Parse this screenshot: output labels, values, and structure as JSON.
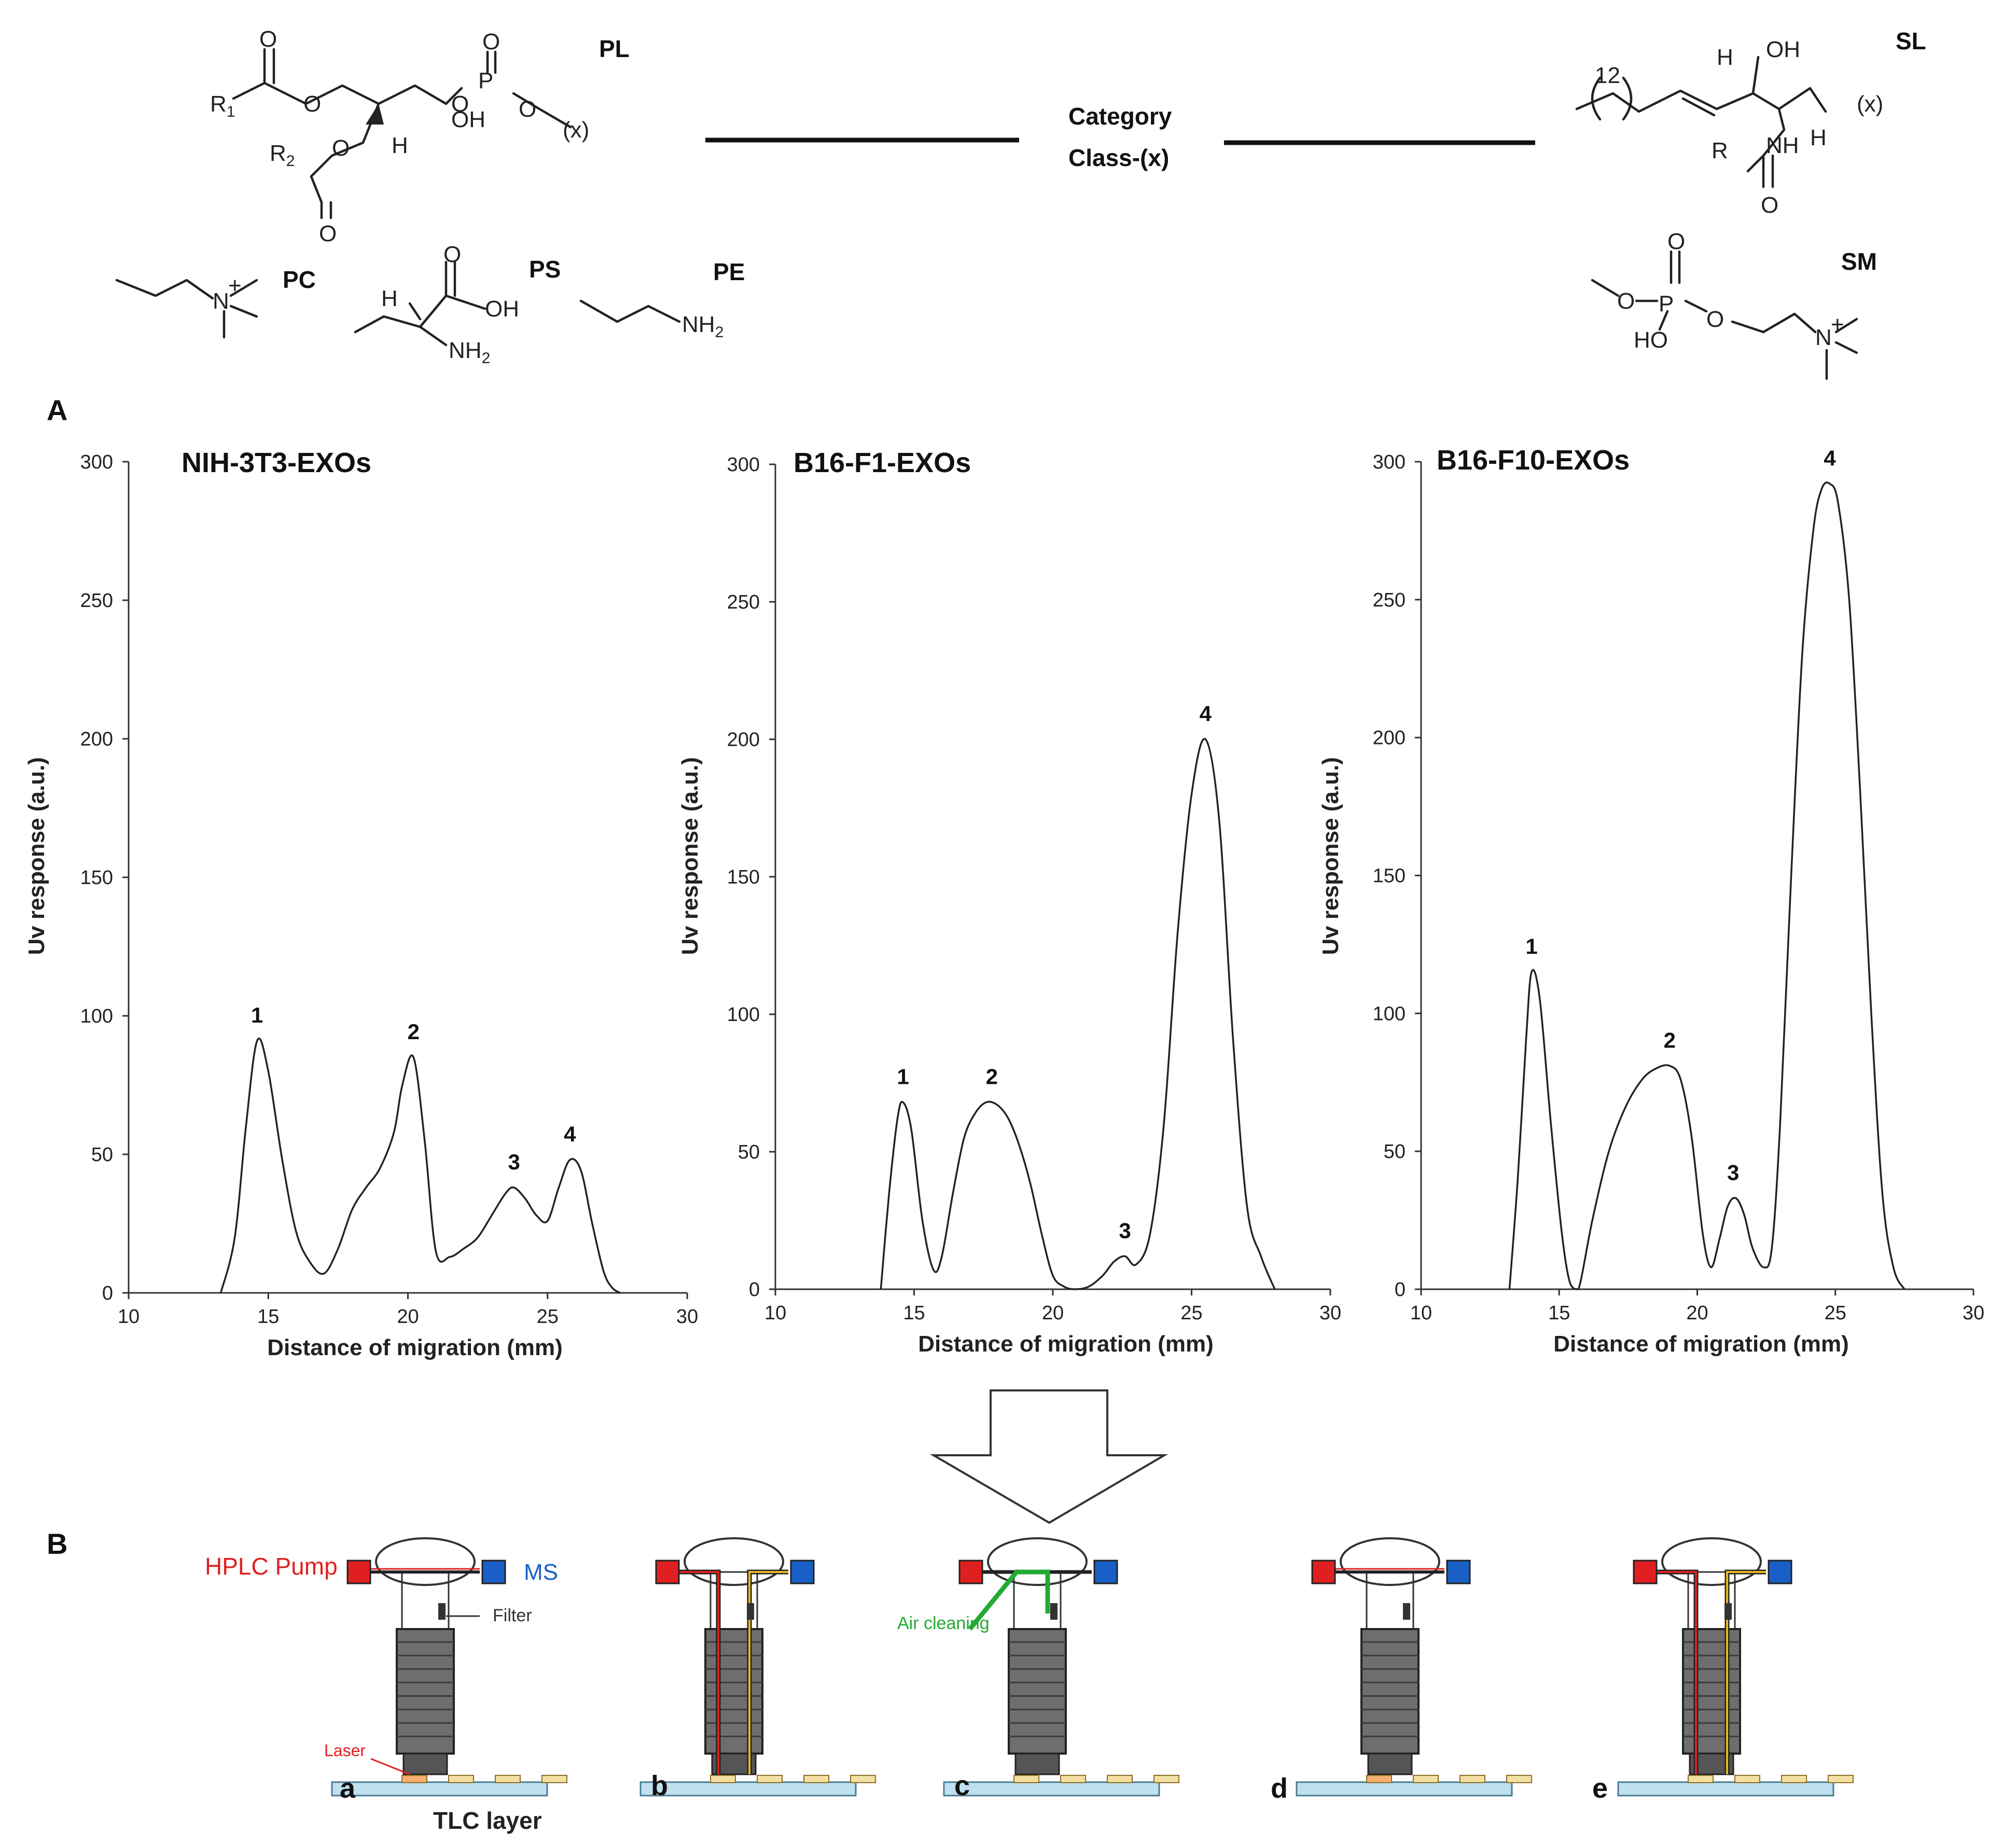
{
  "structures": {
    "pl": {
      "label": "PL",
      "r1": "R",
      "r1_sub": "1",
      "r2": "R",
      "r2_sub": "2",
      "h": "H",
      "oh": "OH",
      "p": "P",
      "x": "(x)",
      "o": "O"
    },
    "sl": {
      "label": "SL",
      "n": "12",
      "h": "H",
      "oh": "OH",
      "nh": "NH",
      "r": "R",
      "x": "(x)",
      "o": "O"
    },
    "pc": {
      "label": "PC",
      "n": "N",
      "charge": "+"
    },
    "ps": {
      "label": "PS",
      "h": "H",
      "oh": "OH",
      "nh2": "NH",
      "nh2_sub": "2",
      "o": "O"
    },
    "pe": {
      "label": "PE",
      "nh2": "NH",
      "nh2_sub": "2"
    },
    "sm": {
      "label": "SM",
      "o": "O",
      "p": "P",
      "ho": "HO",
      "n": "N",
      "charge": "+"
    },
    "category": "Category",
    "class": "Class-(x)"
  },
  "panels": {
    "a": "A",
    "b": "B"
  },
  "chart_data": [
    {
      "type": "line",
      "title": "NIH-3T3-EXOs",
      "xlabel": "Distance of migration (mm)",
      "ylabel": "Uv response (a.u.)",
      "xlim": [
        10,
        30
      ],
      "ylim": [
        0,
        300
      ],
      "xticks": [
        10,
        15,
        20,
        25,
        30
      ],
      "yticks": [
        0,
        50,
        100,
        150,
        200,
        250,
        300
      ],
      "x": [
        13.3,
        13.8,
        14.2,
        14.6,
        15.0,
        15.5,
        16.0,
        16.5,
        17.0,
        17.5,
        18.0,
        18.5,
        19.0,
        19.5,
        19.8,
        20.2,
        20.6,
        21.0,
        21.5,
        22.0,
        22.5,
        23.0,
        23.5,
        23.8,
        24.2,
        24.6,
        25.0,
        25.4,
        25.8,
        26.2,
        26.6,
        27.0,
        27.3,
        27.6
      ],
      "y": [
        0,
        20,
        60,
        91,
        80,
        48,
        22,
        11,
        7,
        16,
        30,
        38,
        45,
        58,
        75,
        85,
        55,
        15,
        13,
        16,
        20,
        28,
        36,
        38,
        34,
        28,
        26,
        38,
        48,
        44,
        25,
        8,
        2,
        0
      ],
      "peaks": [
        {
          "label": "1",
          "x": 14.6,
          "y": 91
        },
        {
          "label": "2",
          "x": 20.2,
          "y": 85
        },
        {
          "label": "3",
          "x": 23.8,
          "y": 38
        },
        {
          "label": "4",
          "x": 25.8,
          "y": 48
        }
      ]
    },
    {
      "type": "line",
      "title": "B16-F1-EXOs",
      "xlabel": "Distance of migration (mm)",
      "ylabel": "Uv response (a.u.)",
      "xlim": [
        10,
        30
      ],
      "ylim": [
        0,
        300
      ],
      "xticks": [
        10,
        15,
        20,
        25,
        30
      ],
      "yticks": [
        0,
        50,
        100,
        150,
        200,
        250,
        300
      ],
      "x": [
        13.8,
        14.1,
        14.4,
        14.6,
        14.9,
        15.3,
        15.7,
        16.0,
        16.4,
        16.8,
        17.2,
        17.6,
        18.0,
        18.4,
        18.8,
        19.2,
        19.6,
        20.0,
        20.4,
        20.8,
        21.3,
        21.8,
        22.2,
        22.6,
        23.0,
        23.5,
        24.0,
        24.5,
        25.0,
        25.5,
        26.0,
        26.5,
        27.0,
        27.5,
        28.0
      ],
      "y": [
        0,
        35,
        62,
        68,
        58,
        25,
        7,
        12,
        35,
        55,
        64,
        68,
        67,
        62,
        52,
        38,
        20,
        5,
        1,
        0,
        1,
        5,
        10,
        12,
        9,
        20,
        60,
        130,
        180,
        200,
        170,
        90,
        30,
        12,
        0
      ],
      "peaks": [
        {
          "label": "1",
          "x": 14.6,
          "y": 68
        },
        {
          "label": "2",
          "x": 17.8,
          "y": 68
        },
        {
          "label": "3",
          "x": 22.6,
          "y": 12
        },
        {
          "label": "4",
          "x": 25.5,
          "y": 200
        }
      ]
    },
    {
      "type": "line",
      "title": "B16-F10-EXOs",
      "xlabel": "Distance of migration (mm)",
      "ylabel": "Uv response (a.u.)",
      "xlim": [
        10,
        30
      ],
      "ylim": [
        0,
        300
      ],
      "xticks": [
        10,
        15,
        20,
        25,
        30
      ],
      "yticks": [
        0,
        50,
        100,
        150,
        200,
        250,
        300
      ],
      "x": [
        13.2,
        13.5,
        13.8,
        14.0,
        14.3,
        14.7,
        15.1,
        15.4,
        15.7,
        16.2,
        16.8,
        17.4,
        18.0,
        18.5,
        19.0,
        19.4,
        19.8,
        20.2,
        20.5,
        20.8,
        21.1,
        21.4,
        21.7,
        22.0,
        22.4,
        22.7,
        23.0,
        23.4,
        23.8,
        24.2,
        24.5,
        24.8,
        25.1,
        25.5,
        25.9,
        26.3,
        26.7,
        27.1,
        27.5
      ],
      "y": [
        0,
        40,
        90,
        115,
        105,
        60,
        20,
        2,
        0,
        25,
        50,
        66,
        76,
        80,
        81,
        76,
        55,
        20,
        8,
        18,
        30,
        33,
        27,
        15,
        8,
        15,
        60,
        150,
        230,
        275,
        290,
        292,
        285,
        250,
        180,
        100,
        35,
        8,
        0
      ],
      "peaks": [
        {
          "label": "1",
          "x": 14.0,
          "y": 115
        },
        {
          "label": "2",
          "x": 19.0,
          "y": 81
        },
        {
          "label": "3",
          "x": 21.3,
          "y": 33
        },
        {
          "label": "4",
          "x": 24.8,
          "y": 292
        }
      ]
    }
  ],
  "diagram": {
    "hplc": "HPLC Pump",
    "ms": "MS",
    "filter": "Filter",
    "laser": "Laser",
    "air": "Air cleaning",
    "tlc": "TLC layer",
    "steps": [
      "a",
      "b",
      "c",
      "d",
      "e"
    ],
    "colors": {
      "hplc": "#e02020",
      "ms": "#1a5fc8",
      "air": "#22aa33",
      "yellow": "#e8b820",
      "tlc": "#bfe0ef",
      "spot": "#f3dfa0"
    }
  }
}
